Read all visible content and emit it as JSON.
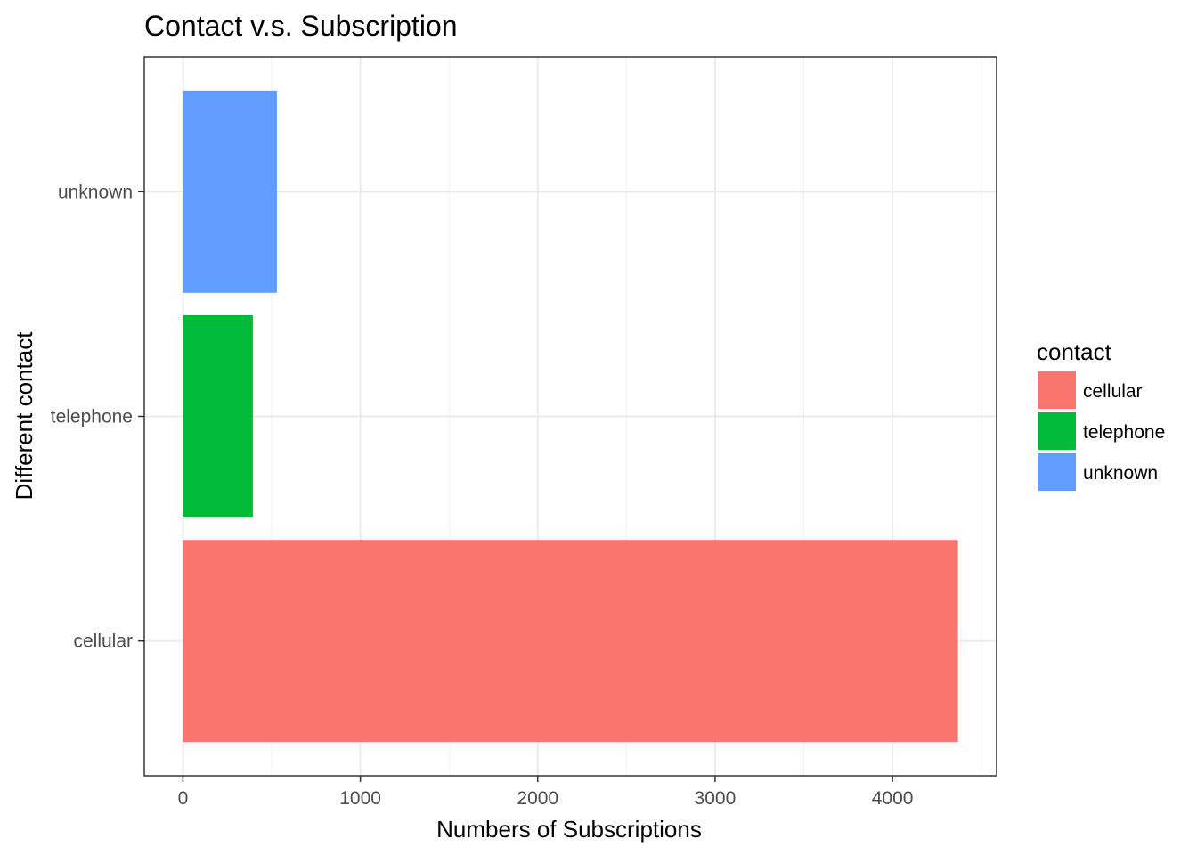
{
  "chart_data": {
    "type": "bar",
    "orientation": "horizontal",
    "title": "Contact v.s. Subscription",
    "xlabel": "Numbers of Subscriptions",
    "ylabel": "Different contact",
    "categories": [
      "cellular",
      "telephone",
      "unknown"
    ],
    "values": [
      4369,
      394,
      530
    ],
    "colors": [
      "#F8766D",
      "#00BA38",
      "#619CFF"
    ],
    "xlim": [
      -218,
      4587
    ],
    "xticks": [
      0,
      1000,
      2000,
      3000,
      4000
    ],
    "xtick_labels": [
      "0",
      "1000",
      "2000",
      "3000",
      "4000"
    ],
    "grid": true,
    "legend": {
      "title": "contact",
      "position": "right",
      "entries": [
        "cellular",
        "telephone",
        "unknown"
      ]
    }
  }
}
